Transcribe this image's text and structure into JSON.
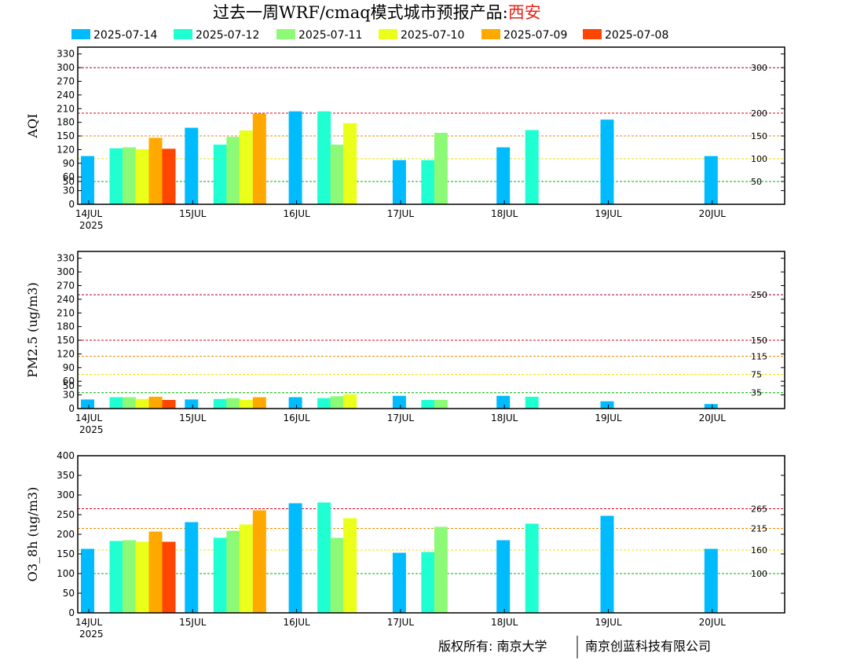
{
  "title": {
    "main": "过去一周WRF/cmaq模式城市预报产品:",
    "city": "西安",
    "city_color": "#e8231c"
  },
  "legend": [
    {
      "name": "2025-07-14",
      "color": "#00bcff"
    },
    {
      "name": "2025-07-12",
      "color": "#1fffd2"
    },
    {
      "name": "2025-07-11",
      "color": "#8cfa76"
    },
    {
      "name": "2025-07-10",
      "color": "#eaff19"
    },
    {
      "name": "2025-07-09",
      "color": "#ffa800"
    },
    {
      "name": "2025-07-08",
      "color": "#ff4600"
    }
  ],
  "footer": {
    "left": "版权所有: 南京大学",
    "right": "南京创蓝科技有限公司"
  },
  "chart_data": [
    {
      "type": "bar",
      "ylabel": "AQI",
      "ylim": [
        0,
        345
      ],
      "yticks": [
        0,
        30,
        50,
        60,
        90,
        120,
        150,
        180,
        210,
        240,
        270,
        300,
        330
      ],
      "xticks": [
        "14JUL",
        "15JUL",
        "16JUL",
        "17JUL",
        "18JUL",
        "19JUL",
        "20JUL"
      ],
      "x_year": "2025",
      "ref_lines": [
        {
          "value": 300,
          "label": "300",
          "color": "#a0004a"
        },
        {
          "value": 200,
          "label": "200",
          "color": "#e0001a"
        },
        {
          "value": 150,
          "label": "150",
          "color": "#f08a00"
        },
        {
          "value": 100,
          "label": "100",
          "color": "#f2e000"
        },
        {
          "value": 50,
          "label": "50",
          "color": "#00b400"
        }
      ],
      "series": [
        {
          "name": "2025-07-14",
          "values": [
            106,
            168,
            204,
            97,
            125,
            186,
            106
          ]
        },
        {
          "name": "2025-07-12",
          "values": [
            123,
            131,
            204,
            97,
            163,
            null,
            null
          ]
        },
        {
          "name": "2025-07-11",
          "values": [
            125,
            148,
            131,
            157,
            null,
            null,
            null
          ]
        },
        {
          "name": "2025-07-10",
          "values": [
            121,
            162,
            178,
            null,
            null,
            null,
            null
          ]
        },
        {
          "name": "2025-07-09",
          "values": [
            146,
            199,
            null,
            null,
            null,
            null,
            null
          ]
        },
        {
          "name": "2025-07-08",
          "values": [
            122,
            null,
            null,
            null,
            null,
            null,
            null
          ]
        }
      ]
    },
    {
      "type": "bar",
      "ylabel": "PM2.5 (ug/m3)",
      "ylim": [
        0,
        345
      ],
      "yticks": [
        0,
        30,
        50,
        60,
        90,
        120,
        150,
        180,
        210,
        240,
        270,
        300,
        330
      ],
      "xticks": [
        "14JUL",
        "15JUL",
        "16JUL",
        "17JUL",
        "18JUL",
        "19JUL",
        "20JUL"
      ],
      "x_year": "2025",
      "ref_lines": [
        {
          "value": 250,
          "label": "250",
          "color": "#a0004a"
        },
        {
          "value": 150,
          "label": "150",
          "color": "#e0001a"
        },
        {
          "value": 115,
          "label": "115",
          "color": "#f08a00"
        },
        {
          "value": 75,
          "label": "75",
          "color": "#f2e000"
        },
        {
          "value": 35,
          "label": "35",
          "color": "#00b400"
        }
      ],
      "series": [
        {
          "name": "2025-07-14",
          "values": [
            20,
            20,
            25,
            28,
            28,
            16,
            10
          ]
        },
        {
          "name": "2025-07-12",
          "values": [
            25,
            21,
            23,
            19,
            26,
            null,
            null
          ]
        },
        {
          "name": "2025-07-11",
          "values": [
            25,
            23,
            27,
            19,
            null,
            null,
            null
          ]
        },
        {
          "name": "2025-07-10",
          "values": [
            21,
            19,
            31,
            null,
            null,
            null,
            null
          ]
        },
        {
          "name": "2025-07-09",
          "values": [
            26,
            25,
            null,
            null,
            null,
            null,
            null
          ]
        },
        {
          "name": "2025-07-08",
          "values": [
            19,
            null,
            null,
            null,
            null,
            null,
            null
          ]
        }
      ]
    },
    {
      "type": "bar",
      "ylabel": "O3_8h (ug/m3)",
      "ylim": [
        0,
        400
      ],
      "yticks": [
        0,
        50,
        100,
        150,
        200,
        250,
        300,
        350,
        400
      ],
      "xticks": [
        "14JUL",
        "15JUL",
        "16JUL",
        "17JUL",
        "18JUL",
        "19JUL",
        "20JUL"
      ],
      "x_year": "2025",
      "ref_lines": [
        {
          "value": 265,
          "label": "265",
          "color": "#e0001a"
        },
        {
          "value": 215,
          "label": "215",
          "color": "#f08a00"
        },
        {
          "value": 160,
          "label": "160",
          "color": "#f2e000"
        },
        {
          "value": 100,
          "label": "100",
          "color": "#00b400"
        }
      ],
      "series": [
        {
          "name": "2025-07-14",
          "values": [
            163,
            231,
            279,
            153,
            185,
            247,
            163
          ]
        },
        {
          "name": "2025-07-12",
          "values": [
            183,
            191,
            281,
            155,
            227,
            null,
            null
          ]
        },
        {
          "name": "2025-07-11",
          "values": [
            185,
            209,
            191,
            219,
            null,
            null,
            null
          ]
        },
        {
          "name": "2025-07-10",
          "values": [
            181,
            225,
            241,
            null,
            null,
            null,
            null
          ]
        },
        {
          "name": "2025-07-09",
          "values": [
            207,
            261,
            null,
            null,
            null,
            null,
            null
          ]
        },
        {
          "name": "2025-07-08",
          "values": [
            181,
            null,
            null,
            null,
            null,
            null,
            null
          ]
        }
      ]
    }
  ]
}
